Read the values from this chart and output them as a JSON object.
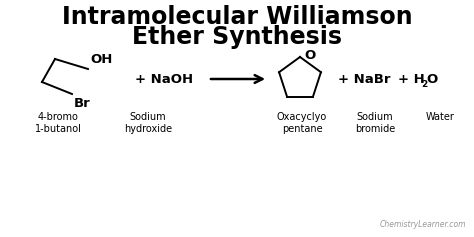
{
  "title_line1": "Intramolecular Williamson",
  "title_line2": "Ether Synthesis",
  "title_fontsize": 17,
  "title_fontweight": "bold",
  "background_color": "#ffffff",
  "text_color": "#000000",
  "watermark": "ChemistryLearner.com",
  "watermark_color": "#999999",
  "watermark_fontsize": 5.5,
  "label1_line1": "4-bromo",
  "label1_line2": "1-butanol",
  "label2_line1": "Sodium",
  "label2_line2": "hydroxide",
  "label3_line1": "Oxacyclyo",
  "label3_line2": "pentane",
  "label4_line1": "Sodium",
  "label4_line2": "bromide",
  "label5_line1": "Water",
  "label5_line2": "",
  "chem_fontsize": 9.5,
  "label_fontsize": 7.0,
  "plus_fontsize": 9.5
}
